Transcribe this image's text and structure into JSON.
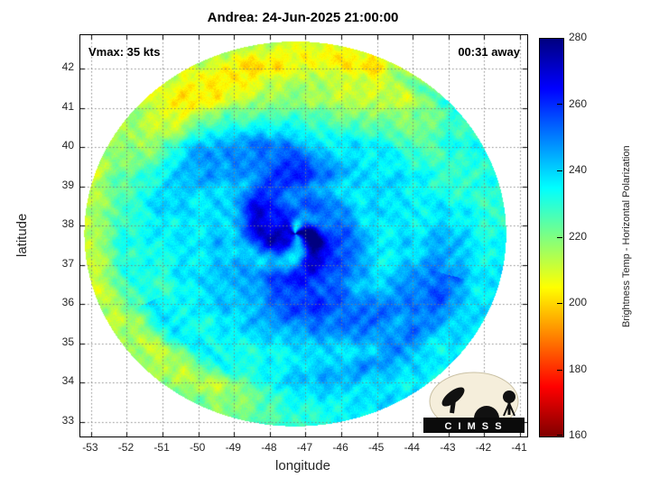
{
  "title": "Andrea: 24-Jun-2025 21:00:00",
  "annotations": {
    "vmax_label": "Vmax: 35 kts",
    "time_away_label": "00:31 away"
  },
  "axes": {
    "xlabel": "longitude",
    "ylabel": "latitude"
  },
  "colorbar": {
    "label": "Brightness Temp - Horizontal Polarization"
  },
  "logo": {
    "text": "C I M S S"
  },
  "chart_data": {
    "type": "heatmap",
    "title": "Andrea: 24-Jun-2025 21:00:00",
    "xlabel": "longitude",
    "ylabel": "latitude",
    "x_range": [
      -53.3,
      -40.8
    ],
    "y_range": [
      32.63,
      42.85
    ],
    "x_ticks": [
      -53,
      -52,
      -51,
      -50,
      -49,
      -48,
      -47,
      -46,
      -45,
      -44,
      -43,
      -42,
      -41
    ],
    "y_ticks": [
      33,
      34,
      35,
      36,
      37,
      38,
      39,
      40,
      41,
      42
    ],
    "grid": "dotted gray, on",
    "value_label": "Brightness Temp - Horizontal Polarization",
    "value_range": [
      160,
      280
    ],
    "colorbar_ticks": [
      160,
      180,
      200,
      220,
      240,
      260,
      280
    ],
    "colormap": [
      {
        "pos": 0.0,
        "color": "#800000"
      },
      {
        "pos": 0.125,
        "color": "#ff0000"
      },
      {
        "pos": 0.25,
        "color": "#ff8000"
      },
      {
        "pos": 0.375,
        "color": "#ffff00"
      },
      {
        "pos": 0.5,
        "color": "#80ff80"
      },
      {
        "pos": 0.625,
        "color": "#00ffff"
      },
      {
        "pos": 0.75,
        "color": "#0080ff"
      },
      {
        "pos": 0.875,
        "color": "#0000ff"
      },
      {
        "pos": 1.0,
        "color": "#000080"
      }
    ],
    "storm": {
      "name": "Andrea",
      "valid_time": "24-Jun-2025 21:00:00",
      "vmax_kts": 35,
      "time_away": "00:31"
    },
    "swath": {
      "center_lon": -47.3,
      "center_lat": 37.8,
      "radius_lon_deg": 5.9,
      "radius_lat_deg": 4.9,
      "base_temp_k": 237,
      "core_max_temp_k": 278,
      "rim_min_temp_k": 200
    },
    "features": [
      "circular microwave satellite swath footprint; white outside swath",
      "dark blue spiral cloud bands (255-278 K) wrapped around storm center near 47.3W 38.0N",
      "broad cyan field (~230-245 K) filling most of the swath",
      "yellow-green arc (~200-222 K) along west, northwest and north swath rim",
      "green-yellow band extending northeast along the top near 41-42.5N",
      "thin darker blue arc near 34.5N south of the storm center",
      "blue diagonal streak in the northeast quadrant near 43W 41.3N"
    ]
  }
}
